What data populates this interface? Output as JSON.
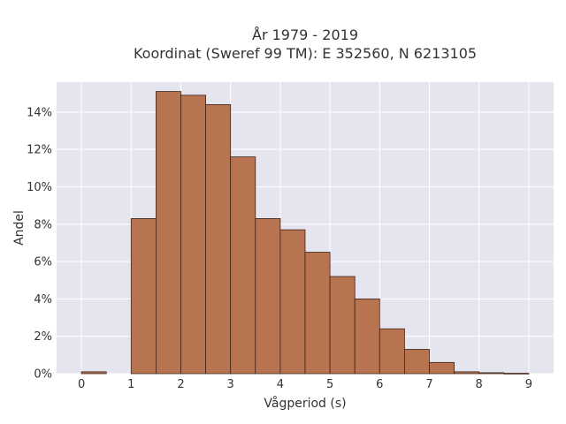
{
  "chart_data": {
    "type": "bar",
    "title_line1": "År 1979 - 2019",
    "title_line2": "Koordinat (Sweref 99 TM): E 352560, N 6213105",
    "xlabel": "Vågperiod (s)",
    "ylabel": "Andel",
    "bin_width": 0.5,
    "bins": [
      {
        "x0": 0.0,
        "x1": 0.5,
        "value": 0.1
      },
      {
        "x0": 0.5,
        "x1": 1.0,
        "value": 0.0
      },
      {
        "x0": 1.0,
        "x1": 1.5,
        "value": 8.3
      },
      {
        "x0": 1.5,
        "x1": 2.0,
        "value": 15.1
      },
      {
        "x0": 2.0,
        "x1": 2.5,
        "value": 14.9
      },
      {
        "x0": 2.5,
        "x1": 3.0,
        "value": 14.4
      },
      {
        "x0": 3.0,
        "x1": 3.5,
        "value": 11.6
      },
      {
        "x0": 3.5,
        "x1": 4.0,
        "value": 8.3
      },
      {
        "x0": 4.0,
        "x1": 4.5,
        "value": 7.7
      },
      {
        "x0": 4.5,
        "x1": 5.0,
        "value": 6.5
      },
      {
        "x0": 5.0,
        "x1": 5.5,
        "value": 5.2
      },
      {
        "x0": 5.5,
        "x1": 6.0,
        "value": 4.0
      },
      {
        "x0": 6.0,
        "x1": 6.5,
        "value": 2.4
      },
      {
        "x0": 6.5,
        "x1": 7.0,
        "value": 1.3
      },
      {
        "x0": 7.0,
        "x1": 7.5,
        "value": 0.6
      },
      {
        "x0": 7.5,
        "x1": 8.0,
        "value": 0.1
      },
      {
        "x0": 8.0,
        "x1": 8.5,
        "value": 0.05
      },
      {
        "x0": 8.5,
        "x1": 9.0,
        "value": 0.02
      }
    ],
    "xlim": [
      -0.5,
      9.5
    ],
    "ylim": [
      0,
      15.6
    ],
    "x_ticks": [
      0,
      1,
      2,
      3,
      4,
      5,
      6,
      7,
      8,
      9
    ],
    "x_tick_labels": [
      "0",
      "1",
      "2",
      "3",
      "4",
      "5",
      "6",
      "7",
      "8",
      "9"
    ],
    "y_ticks": [
      0,
      2,
      4,
      6,
      8,
      10,
      12,
      14
    ],
    "y_tick_labels": [
      "0%",
      "2%",
      "4%",
      "6%",
      "8%",
      "10%",
      "12%",
      "14%"
    ],
    "grid": true,
    "colors": {
      "bar": "#b87350",
      "bar_edge": "#3d2418",
      "plot_bg": "#e5e5ef",
      "grid": "#ffffff"
    }
  }
}
